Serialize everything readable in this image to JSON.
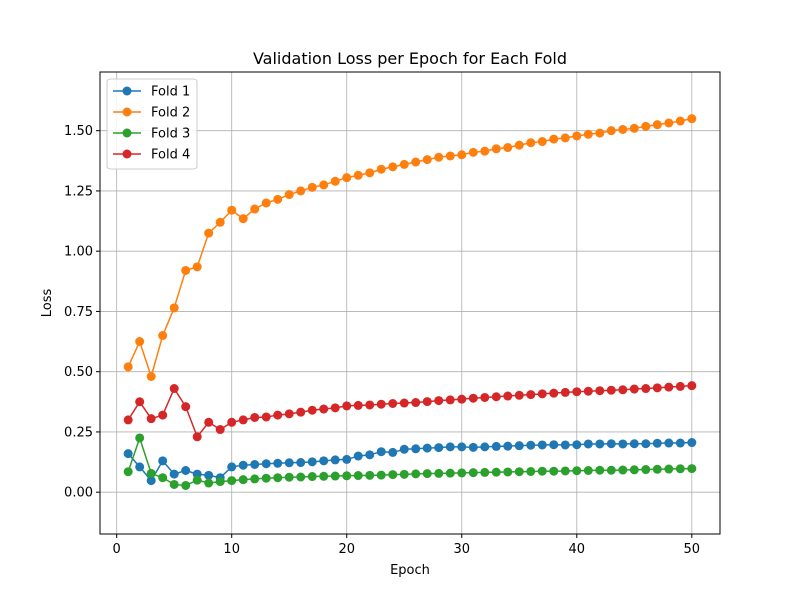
{
  "chart_data": {
    "type": "line",
    "title": "Validation Loss per Epoch for Each Fold",
    "xlabel": "Epoch",
    "ylabel": "Loss",
    "xlim": [
      -1.45,
      52.45
    ],
    "ylim": [
      -0.1735,
      1.7435
    ],
    "xticks": [
      0,
      10,
      20,
      30,
      40,
      50
    ],
    "yticks": [
      0.0,
      0.25,
      0.5,
      0.75,
      1.0,
      1.25,
      1.5
    ],
    "ytick_labels": [
      "0.00",
      "0.25",
      "0.50",
      "0.75",
      "1.00",
      "1.25",
      "1.50"
    ],
    "grid": true,
    "legend_position": "top-left",
    "x": [
      1,
      2,
      3,
      4,
      5,
      6,
      7,
      8,
      9,
      10,
      11,
      12,
      13,
      14,
      15,
      16,
      17,
      18,
      19,
      20,
      21,
      22,
      23,
      24,
      25,
      26,
      27,
      28,
      29,
      30,
      31,
      32,
      33,
      34,
      35,
      36,
      37,
      38,
      39,
      40,
      41,
      42,
      43,
      44,
      45,
      46,
      47,
      48,
      49,
      50
    ],
    "series": [
      {
        "name": "Fold 1",
        "color": "#1f77b4",
        "values": [
          0.16,
          0.105,
          0.048,
          0.13,
          0.075,
          0.09,
          0.075,
          0.07,
          0.06,
          0.105,
          0.112,
          0.115,
          0.118,
          0.12,
          0.122,
          0.123,
          0.126,
          0.13,
          0.134,
          0.136,
          0.15,
          0.155,
          0.168,
          0.165,
          0.178,
          0.18,
          0.183,
          0.185,
          0.188,
          0.188,
          0.186,
          0.188,
          0.19,
          0.191,
          0.193,
          0.195,
          0.196,
          0.197,
          0.196,
          0.197,
          0.2,
          0.2,
          0.201,
          0.2,
          0.201,
          0.201,
          0.203,
          0.204,
          0.204,
          0.206
        ]
      },
      {
        "name": "Fold 2",
        "color": "#ff7f0e",
        "values": [
          0.52,
          0.625,
          0.48,
          0.65,
          0.765,
          0.92,
          0.935,
          1.075,
          1.12,
          1.17,
          1.135,
          1.175,
          1.2,
          1.215,
          1.235,
          1.25,
          1.265,
          1.275,
          1.29,
          1.305,
          1.315,
          1.325,
          1.34,
          1.35,
          1.36,
          1.37,
          1.38,
          1.39,
          1.395,
          1.4,
          1.41,
          1.415,
          1.425,
          1.43,
          1.44,
          1.45,
          1.455,
          1.465,
          1.47,
          1.478,
          1.485,
          1.49,
          1.5,
          1.505,
          1.51,
          1.518,
          1.525,
          1.532,
          1.54,
          1.55
        ]
      },
      {
        "name": "Fold 3",
        "color": "#2ca02c",
        "values": [
          0.085,
          0.225,
          0.078,
          0.06,
          0.032,
          0.028,
          0.05,
          0.038,
          0.044,
          0.048,
          0.052,
          0.055,
          0.058,
          0.06,
          0.062,
          0.063,
          0.065,
          0.066,
          0.067,
          0.068,
          0.069,
          0.07,
          0.071,
          0.073,
          0.074,
          0.076,
          0.077,
          0.078,
          0.079,
          0.08,
          0.081,
          0.082,
          0.083,
          0.084,
          0.085,
          0.086,
          0.087,
          0.087,
          0.088,
          0.089,
          0.09,
          0.091,
          0.091,
          0.092,
          0.093,
          0.094,
          0.095,
          0.096,
          0.097,
          0.098
        ]
      },
      {
        "name": "Fold 4",
        "color": "#d62728",
        "values": [
          0.3,
          0.375,
          0.305,
          0.32,
          0.43,
          0.355,
          0.23,
          0.29,
          0.26,
          0.29,
          0.3,
          0.31,
          0.312,
          0.32,
          0.325,
          0.332,
          0.34,
          0.345,
          0.35,
          0.358,
          0.36,
          0.362,
          0.365,
          0.368,
          0.37,
          0.372,
          0.376,
          0.38,
          0.383,
          0.386,
          0.39,
          0.393,
          0.396,
          0.399,
          0.402,
          0.405,
          0.408,
          0.411,
          0.414,
          0.417,
          0.419,
          0.421,
          0.423,
          0.425,
          0.428,
          0.43,
          0.433,
          0.436,
          0.439,
          0.442
        ]
      }
    ]
  }
}
